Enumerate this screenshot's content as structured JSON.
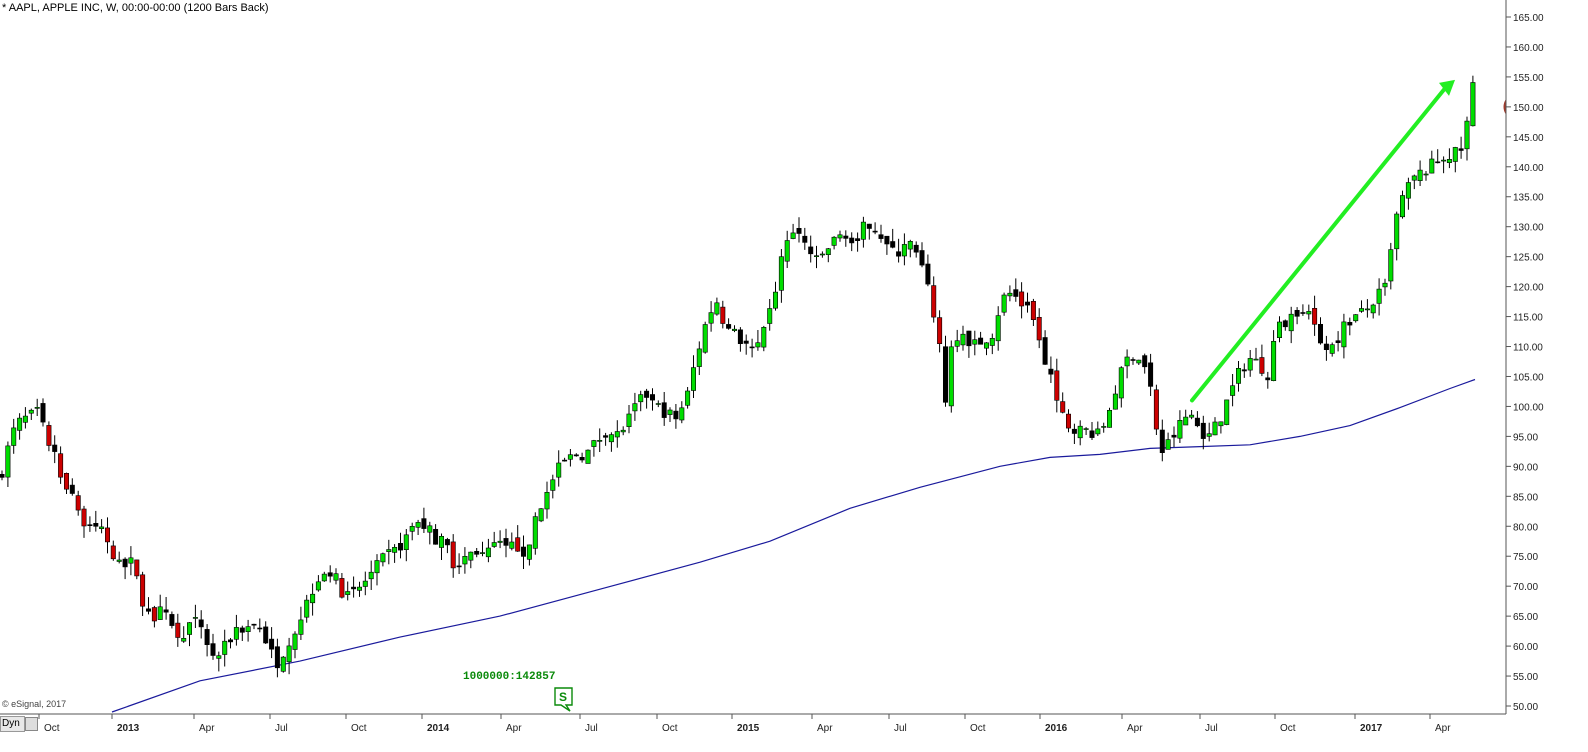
{
  "header": {
    "title": "* AAPL, APPLE INC, W, 00:00-00:00 (1200 Bars Back)",
    "copyright": "© eSignal, 2017",
    "split_label": "1000000:142857",
    "split_marker": "S",
    "dyn_label": "Dyn"
  },
  "colors": {
    "up": "#00dd00",
    "down_black": "#000000",
    "down_red": "#cc0000",
    "ma_line": "#1a1a9c",
    "arrow": "#22ee22",
    "circle": "#a0392a"
  },
  "chart_data": {
    "type": "candlestick",
    "symbol": "AAPL",
    "interval": "W",
    "ylim": [
      50,
      165
    ],
    "y_ticks": [
      "165.00",
      "160.00",
      "155.00",
      "150.00",
      "145.00",
      "140.00",
      "135.00",
      "130.00",
      "125.00",
      "120.00",
      "115.00",
      "110.00",
      "105.00",
      "100.00",
      "95.00",
      "90.00",
      "85.00",
      "80.00",
      "75.00",
      "70.00",
      "65.00",
      "60.00",
      "55.00",
      "50.00"
    ],
    "x_ticks": [
      "Oct",
      "2013",
      "Apr",
      "Jul",
      "Oct",
      "2014",
      "Apr",
      "Jul",
      "Oct",
      "2015",
      "Apr",
      "Jul",
      "Oct",
      "2016",
      "Apr",
      "Jul",
      "Oct",
      "2017",
      "Apr"
    ],
    "last_price": "156.10",
    "highlighted_price": "150.00",
    "price_path": [
      [
        0,
        88
      ],
      [
        8,
        93
      ],
      [
        16,
        97
      ],
      [
        26,
        98
      ],
      [
        38,
        99
      ],
      [
        46,
        95
      ],
      [
        56,
        91
      ],
      [
        66,
        87
      ],
      [
        76,
        84
      ],
      [
        86,
        79
      ],
      [
        96,
        80
      ],
      [
        106,
        79
      ],
      [
        112,
        74
      ],
      [
        122,
        73
      ],
      [
        132,
        74
      ],
      [
        142,
        68
      ],
      [
        152,
        64
      ],
      [
        162,
        66
      ],
      [
        172,
        63
      ],
      [
        182,
        62
      ],
      [
        192,
        64
      ],
      [
        200,
        64
      ],
      [
        208,
        60
      ],
      [
        216,
        58
      ],
      [
        226,
        60
      ],
      [
        236,
        63
      ],
      [
        246,
        63
      ],
      [
        256,
        64
      ],
      [
        266,
        61
      ],
      [
        276,
        57
      ],
      [
        286,
        60
      ],
      [
        296,
        63
      ],
      [
        306,
        67
      ],
      [
        316,
        71
      ],
      [
        326,
        73
      ],
      [
        336,
        71
      ],
      [
        346,
        68
      ],
      [
        356,
        69
      ],
      [
        366,
        71
      ],
      [
        376,
        73
      ],
      [
        386,
        75
      ],
      [
        396,
        76
      ],
      [
        406,
        78
      ],
      [
        416,
        81
      ],
      [
        426,
        80
      ],
      [
        436,
        78
      ],
      [
        446,
        77
      ],
      [
        456,
        73
      ],
      [
        466,
        75
      ],
      [
        476,
        76
      ],
      [
        486,
        75
      ],
      [
        496,
        77
      ],
      [
        506,
        76
      ],
      [
        516,
        77
      ],
      [
        526,
        75
      ],
      [
        536,
        82
      ],
      [
        546,
        85
      ],
      [
        556,
        89
      ],
      [
        566,
        91
      ],
      [
        576,
        92
      ],
      [
        586,
        92
      ],
      [
        596,
        94
      ],
      [
        606,
        96
      ],
      [
        616,
        95
      ],
      [
        626,
        97
      ],
      [
        636,
        100
      ],
      [
        646,
        102
      ],
      [
        656,
        100
      ],
      [
        666,
        99
      ],
      [
        676,
        98
      ],
      [
        686,
        101
      ],
      [
        696,
        108
      ],
      [
        706,
        114
      ],
      [
        716,
        118
      ],
      [
        726,
        113
      ],
      [
        736,
        112
      ],
      [
        746,
        110
      ],
      [
        756,
        109
      ],
      [
        766,
        113
      ],
      [
        776,
        120
      ],
      [
        786,
        128
      ],
      [
        796,
        129
      ],
      [
        806,
        127
      ],
      [
        816,
        124
      ],
      [
        826,
        126
      ],
      [
        836,
        128
      ],
      [
        846,
        129
      ],
      [
        856,
        126
      ],
      [
        866,
        131
      ],
      [
        876,
        130
      ],
      [
        886,
        127
      ],
      [
        896,
        125
      ],
      [
        906,
        128
      ],
      [
        914,
        126
      ],
      [
        922,
        123
      ],
      [
        930,
        118
      ],
      [
        938,
        113
      ],
      [
        942,
        104
      ],
      [
        946,
        101
      ],
      [
        952,
        111
      ],
      [
        962,
        113
      ],
      [
        972,
        110
      ],
      [
        982,
        111
      ],
      [
        992,
        112
      ],
      [
        1002,
        118
      ],
      [
        1012,
        119
      ],
      [
        1022,
        117
      ],
      [
        1032,
        115
      ],
      [
        1040,
        110
      ],
      [
        1050,
        105
      ],
      [
        1060,
        99
      ],
      [
        1070,
        97
      ],
      [
        1080,
        96
      ],
      [
        1090,
        96
      ],
      [
        1100,
        95
      ],
      [
        1110,
        100
      ],
      [
        1120,
        105
      ],
      [
        1130,
        109
      ],
      [
        1140,
        108
      ],
      [
        1150,
        105
      ],
      [
        1156,
        96
      ],
      [
        1162,
        93
      ],
      [
        1170,
        94
      ],
      [
        1180,
        97
      ],
      [
        1190,
        99
      ],
      [
        1200,
        96
      ],
      [
        1210,
        95
      ],
      [
        1220,
        98
      ],
      [
        1230,
        102
      ],
      [
        1240,
        106
      ],
      [
        1250,
        108
      ],
      [
        1260,
        107
      ],
      [
        1268,
        105
      ],
      [
        1276,
        113
      ],
      [
        1286,
        114
      ],
      [
        1296,
        116
      ],
      [
        1306,
        117
      ],
      [
        1316,
        112
      ],
      [
        1326,
        110
      ],
      [
        1336,
        111
      ],
      [
        1346,
        114
      ],
      [
        1356,
        115
      ],
      [
        1366,
        116
      ],
      [
        1376,
        118
      ],
      [
        1386,
        120
      ],
      [
        1392,
        127
      ],
      [
        1398,
        133
      ],
      [
        1406,
        136
      ],
      [
        1414,
        138
      ],
      [
        1422,
        139
      ],
      [
        1430,
        140
      ],
      [
        1438,
        141
      ],
      [
        1446,
        142
      ],
      [
        1454,
        142
      ],
      [
        1462,
        143
      ],
      [
        1468,
        148
      ],
      [
        1475,
        156
      ]
    ],
    "moving_average": [
      [
        112,
        49
      ],
      [
        200,
        54.2
      ],
      [
        300,
        57.5
      ],
      [
        400,
        61.5
      ],
      [
        500,
        65
      ],
      [
        600,
        69.5
      ],
      [
        700,
        74
      ],
      [
        770,
        77.5
      ],
      [
        850,
        83
      ],
      [
        920,
        86.5
      ],
      [
        1000,
        90
      ],
      [
        1050,
        91.5
      ],
      [
        1100,
        92
      ],
      [
        1150,
        93
      ],
      [
        1200,
        93.3
      ],
      [
        1250,
        93.6
      ],
      [
        1300,
        95
      ],
      [
        1350,
        96.8
      ],
      [
        1400,
        99.8
      ],
      [
        1450,
        103
      ],
      [
        1475,
        104.5
      ]
    ]
  }
}
